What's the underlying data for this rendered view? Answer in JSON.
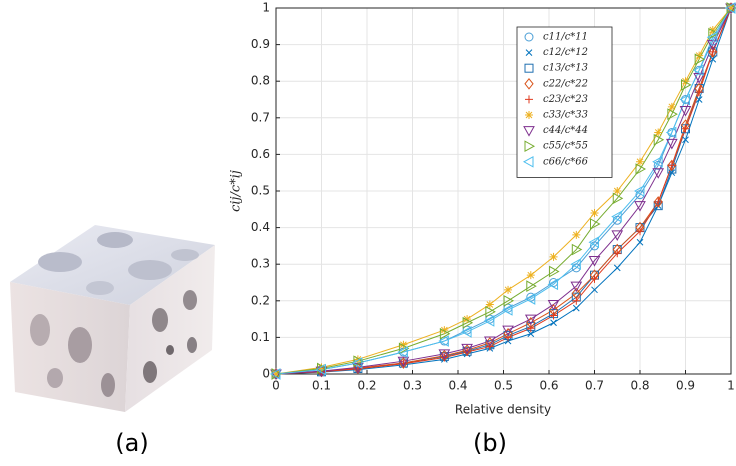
{
  "chart_data": {
    "type": "scatter",
    "panel_labels": [
      "(a)",
      "(b)"
    ],
    "xlabel": "Relative density",
    "ylabel": "cij/c*ij",
    "xlim": [
      0,
      1
    ],
    "ylim": [
      0,
      1
    ],
    "xticks": [
      0,
      0.1,
      0.2,
      0.3,
      0.4,
      0.5,
      0.6,
      0.7,
      0.8,
      0.9,
      1
    ],
    "yticks": [
      0,
      0.1,
      0.2,
      0.3,
      0.4,
      0.5,
      0.6,
      0.7,
      0.8,
      0.9,
      1
    ],
    "grid": true,
    "legend": "upper right",
    "x": [
      0,
      0.1,
      0.18,
      0.28,
      0.37,
      0.42,
      0.47,
      0.51,
      0.56,
      0.61,
      0.66,
      0.7,
      0.75,
      0.8,
      0.84,
      0.87,
      0.9,
      0.93,
      0.96,
      1
    ],
    "series": [
      {
        "name": "c11/c*11",
        "color": "#4a9ed6",
        "marker": "circle",
        "values": [
          0,
          0.012,
          0.03,
          0.06,
          0.09,
          0.12,
          0.15,
          0.18,
          0.21,
          0.25,
          0.29,
          0.35,
          0.42,
          0.49,
          0.57,
          0.66,
          0.75,
          0.83,
          0.91,
          1
        ]
      },
      {
        "name": "c12/c*12",
        "color": "#0072bd",
        "marker": "x",
        "values": [
          0,
          0.005,
          0.012,
          0.025,
          0.04,
          0.055,
          0.07,
          0.09,
          0.11,
          0.14,
          0.18,
          0.23,
          0.29,
          0.36,
          0.46,
          0.55,
          0.64,
          0.75,
          0.86,
          1
        ]
      },
      {
        "name": "c13/c*13",
        "color": "#1f6fb0",
        "marker": "square",
        "values": [
          0,
          0.006,
          0.015,
          0.03,
          0.048,
          0.062,
          0.08,
          0.105,
          0.13,
          0.165,
          0.21,
          0.27,
          0.34,
          0.4,
          0.46,
          0.56,
          0.67,
          0.78,
          0.88,
          1
        ]
      },
      {
        "name": "c22/c*22",
        "color": "#d95319",
        "marker": "diamond",
        "values": [
          0,
          0.007,
          0.016,
          0.03,
          0.05,
          0.065,
          0.085,
          0.11,
          0.14,
          0.175,
          0.22,
          0.27,
          0.34,
          0.4,
          0.47,
          0.57,
          0.68,
          0.78,
          0.88,
          1
        ]
      },
      {
        "name": "c23/c*23",
        "color": "#e03a1e",
        "marker": "plus",
        "values": [
          0,
          0.006,
          0.014,
          0.028,
          0.045,
          0.06,
          0.075,
          0.1,
          0.125,
          0.16,
          0.2,
          0.26,
          0.33,
          0.39,
          0.47,
          0.57,
          0.67,
          0.77,
          0.88,
          1
        ]
      },
      {
        "name": "c33/c*33",
        "color": "#edb120",
        "marker": "star",
        "values": [
          0,
          0.018,
          0.04,
          0.08,
          0.12,
          0.15,
          0.19,
          0.23,
          0.27,
          0.32,
          0.38,
          0.44,
          0.5,
          0.58,
          0.66,
          0.73,
          0.8,
          0.87,
          0.94,
          1
        ]
      },
      {
        "name": "c44/c*44",
        "color": "#7e2f8e",
        "marker": "tri-down",
        "values": [
          0,
          0.008,
          0.018,
          0.035,
          0.055,
          0.07,
          0.09,
          0.12,
          0.15,
          0.19,
          0.24,
          0.31,
          0.38,
          0.46,
          0.55,
          0.63,
          0.72,
          0.81,
          0.9,
          1
        ]
      },
      {
        "name": "c55/c*55",
        "color": "#77ac30",
        "marker": "tri-right",
        "values": [
          0,
          0.015,
          0.035,
          0.07,
          0.11,
          0.14,
          0.17,
          0.2,
          0.24,
          0.28,
          0.34,
          0.41,
          0.48,
          0.56,
          0.64,
          0.71,
          0.79,
          0.86,
          0.93,
          1
        ]
      },
      {
        "name": "c66/c*66",
        "color": "#4dbeee",
        "marker": "tri-left",
        "values": [
          0,
          0.012,
          0.03,
          0.06,
          0.09,
          0.115,
          0.145,
          0.175,
          0.205,
          0.245,
          0.3,
          0.36,
          0.43,
          0.5,
          0.58,
          0.66,
          0.75,
          0.83,
          0.92,
          1
        ]
      }
    ]
  }
}
